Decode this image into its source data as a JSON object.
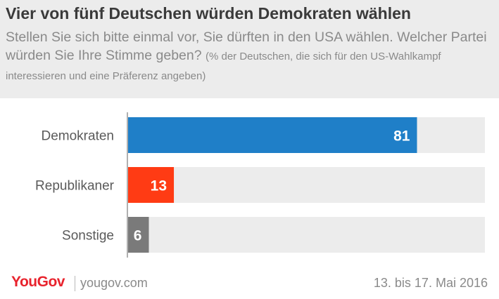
{
  "header": {
    "title": "Vier von fünf Deutschen würden Demokraten wählen",
    "subtitle_main": "Stellen Sie sich bitte einmal vor, Sie dürften in den USA wählen. Welcher Partei würden Sie Ihre Stimme geben?",
    "subtitle_note": "(% der Deutschen, die sich für den US-Wahlkampf interessieren und eine Präferenz angeben)",
    "background": "#ececec"
  },
  "chart_data": {
    "type": "bar",
    "orientation": "horizontal",
    "categories": [
      "Demokraten",
      "Republikaner",
      "Sonstige"
    ],
    "values": [
      81,
      13,
      6
    ],
    "colors": [
      "#1f7fc8",
      "#ff3b14",
      "#7a7a7a"
    ],
    "track_color": "#ececec",
    "xlim": [
      0,
      100
    ],
    "data_labels": [
      "81",
      "13",
      "6"
    ],
    "grid": false,
    "legend": "none"
  },
  "footer": {
    "brand": "YouGov",
    "url": "yougov.com",
    "date": "13. bis 17. Mai 2016",
    "brand_color": "#e8232d"
  }
}
